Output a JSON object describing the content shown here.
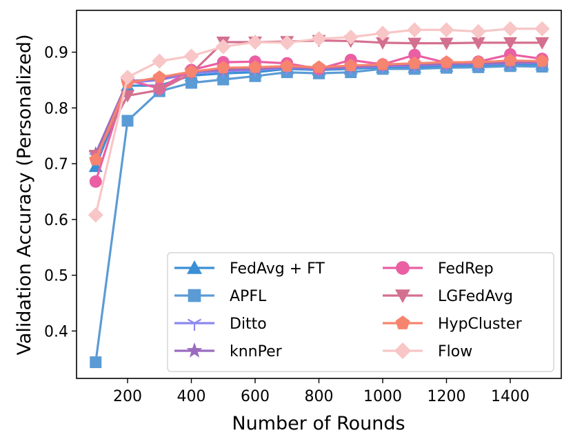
{
  "chart_data": {
    "type": "line",
    "title": "",
    "xlabel": "Number of Rounds",
    "ylabel": "Validation Accuracy (Personalized)",
    "xlim": [
      40,
      1560
    ],
    "ylim": [
      0.315,
      0.975
    ],
    "xticks": [
      200,
      400,
      600,
      800,
      1000,
      1200,
      1400
    ],
    "yticks": [
      0.4,
      0.5,
      0.6,
      0.7,
      0.8,
      0.9
    ],
    "xtick_labels": [
      "200",
      "400",
      "600",
      "800",
      "1000",
      "1200",
      "1400"
    ],
    "ytick_labels": [
      "0.4",
      "0.5",
      "0.6",
      "0.7",
      "0.8",
      "0.9"
    ],
    "grid": false,
    "legend_position": "lower-right",
    "x": [
      100,
      200,
      300,
      400,
      500,
      600,
      700,
      800,
      900,
      1000,
      1100,
      1200,
      1300,
      1400,
      1500
    ],
    "series": [
      {
        "name": "FedAvg + FT",
        "color": "#3a8fd6",
        "marker": "triangle-up",
        "values": [
          0.695,
          0.84,
          0.84,
          0.858,
          0.862,
          0.864,
          0.87,
          0.868,
          0.87,
          0.873,
          0.873,
          0.875,
          0.877,
          0.878,
          0.878
        ]
      },
      {
        "name": "APFL",
        "color": "#5b9bd5",
        "marker": "square",
        "values": [
          0.344,
          0.777,
          0.83,
          0.845,
          0.851,
          0.857,
          0.864,
          0.862,
          0.864,
          0.87,
          0.87,
          0.872,
          0.873,
          0.875,
          0.874
        ]
      },
      {
        "name": "Ditto",
        "color": "#8c88f0",
        "marker": "tri-down",
        "values": [
          0.712,
          0.845,
          0.85,
          0.862,
          0.866,
          0.868,
          0.872,
          0.87,
          0.872,
          0.875,
          0.876,
          0.878,
          0.879,
          0.88,
          0.881
        ]
      },
      {
        "name": "knnPer",
        "color": "#9b6bbf",
        "marker": "star",
        "values": [
          0.718,
          0.848,
          0.852,
          0.865,
          0.868,
          0.87,
          0.873,
          0.871,
          0.873,
          0.876,
          0.877,
          0.879,
          0.88,
          0.881,
          0.882
        ]
      },
      {
        "name": "FedRep",
        "color": "#ea5fa3",
        "marker": "circle",
        "values": [
          0.668,
          0.85,
          0.835,
          0.868,
          0.882,
          0.883,
          0.88,
          0.87,
          0.886,
          0.878,
          0.895,
          0.881,
          0.883,
          0.896,
          0.888
        ]
      },
      {
        "name": "LGFedAvg",
        "color": "#d4708f",
        "marker": "triangle-down",
        "values": [
          0.715,
          0.822,
          0.832,
          0.862,
          0.918,
          0.918,
          0.919,
          0.921,
          0.92,
          0.917,
          0.916,
          0.916,
          0.917,
          0.917,
          0.917
        ]
      },
      {
        "name": "HypCluster",
        "color": "#f6846f",
        "marker": "pentagon",
        "values": [
          0.707,
          0.845,
          0.855,
          0.865,
          0.872,
          0.873,
          0.875,
          0.873,
          0.876,
          0.878,
          0.88,
          0.882,
          0.882,
          0.885,
          0.884
        ]
      },
      {
        "name": "Flow",
        "color": "#f8c6c6",
        "marker": "diamond",
        "values": [
          0.608,
          0.855,
          0.884,
          0.893,
          0.91,
          0.918,
          0.917,
          0.924,
          0.927,
          0.934,
          0.94,
          0.94,
          0.937,
          0.942,
          0.942
        ]
      }
    ]
  }
}
